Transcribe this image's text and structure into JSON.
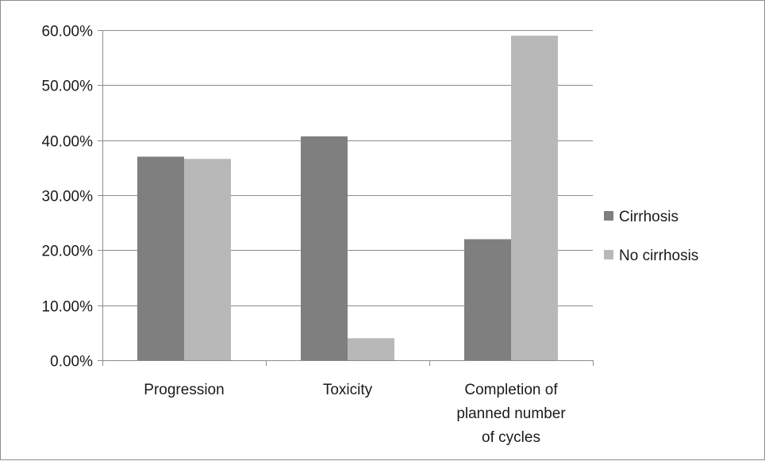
{
  "chart_data": {
    "type": "bar",
    "categories": [
      [
        "Progression"
      ],
      [
        "Toxicity"
      ],
      [
        "Completion of",
        "planned number",
        "of cycles"
      ]
    ],
    "series": [
      {
        "name": "Cirrhosis",
        "values": [
          0.37,
          0.407,
          0.22
        ],
        "color": "#7f7f7f"
      },
      {
        "name": "No cirrhosis",
        "values": [
          0.366,
          0.04,
          0.59
        ],
        "color": "#b8b8b8"
      }
    ],
    "y_ticks": [
      "0.00%",
      "10.00%",
      "20.00%",
      "30.00%",
      "40.00%",
      "50.00%",
      "60.00%"
    ],
    "ylim": [
      0,
      0.6
    ],
    "grid": true,
    "legend": "right",
    "title": "",
    "xlabel": "",
    "ylabel": ""
  }
}
